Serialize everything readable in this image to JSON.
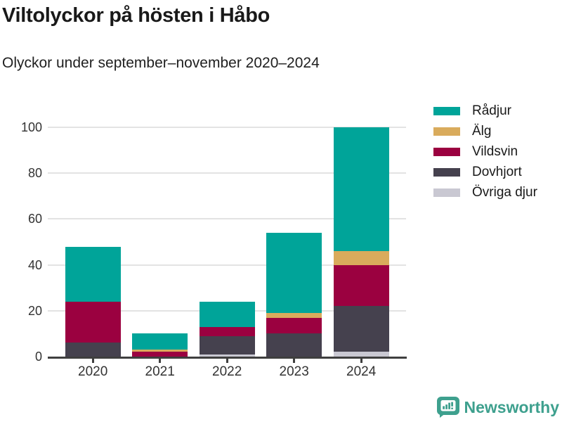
{
  "header": {
    "title": "Viltolyckor på hösten i Håbo",
    "subtitle": "Olyckor under september–november 2020–2024"
  },
  "chart_data": {
    "type": "bar",
    "stacked": true,
    "title": "Viltolyckor på hösten i Håbo",
    "subtitle": "Olyckor under september–november 2020–2024",
    "categories": [
      "2020",
      "2021",
      "2022",
      "2023",
      "2024"
    ],
    "series": [
      {
        "name": "Övriga djur",
        "color": "#C9C8D2",
        "values": [
          0,
          0,
          1,
          0,
          2
        ]
      },
      {
        "name": "Dovhjort",
        "color": "#45414E",
        "values": [
          6,
          0,
          8,
          10,
          20
        ]
      },
      {
        "name": "Vildsvin",
        "color": "#9B0140",
        "values": [
          18,
          2,
          4,
          7,
          18
        ]
      },
      {
        "name": "Älg",
        "color": "#D9AB5C",
        "values": [
          0,
          1,
          0,
          2,
          6
        ]
      },
      {
        "name": "Rådjur",
        "color": "#00A499",
        "values": [
          24,
          7,
          11,
          35,
          54
        ]
      }
    ],
    "totals": [
      48,
      10,
      24,
      54,
      100
    ],
    "xlabel": "",
    "ylabel": "",
    "ylim": [
      0,
      100
    ],
    "yticks": [
      0,
      20,
      40,
      60,
      80,
      100
    ],
    "grid": "horizontal",
    "legend_position": "right",
    "legend_order": [
      "Rådjur",
      "Älg",
      "Vildsvin",
      "Dovhjort",
      "Övriga djur"
    ]
  },
  "branding": {
    "logo_text": "Newsworthy",
    "logo_color": "#3EA08E",
    "logo_icon": "speech-bubble-bar-chart"
  },
  "colors": {
    "background": "#FFFFFF",
    "axis": "#3F3F3F",
    "gridline": "#E3E3E3",
    "tick_text": "#333333",
    "title_text": "#191919"
  }
}
